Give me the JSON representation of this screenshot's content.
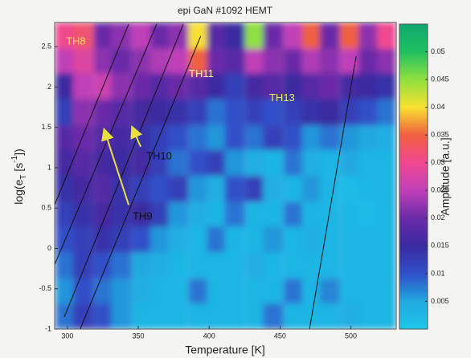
{
  "chart_data": {
    "type": "heatmap",
    "title": "epi GaN #1092 HEMT",
    "xlabel": "Temperature  [K]",
    "ylabel": [
      "log(e",
      "T",
      " [s",
      "-1",
      "])"
    ],
    "colorbar_label": "Amplitude [a.u.]",
    "xlim": [
      291,
      532
    ],
    "ylim": [
      -1,
      2.8
    ],
    "xticks": [
      300,
      350,
      400,
      450,
      500
    ],
    "yticks": [
      -1,
      -0.5,
      0,
      0.5,
      1,
      1.5,
      2,
      2.5
    ],
    "clim": [
      0,
      0.055
    ],
    "cticks": [
      0.005,
      0.01,
      0.015,
      0.02,
      0.025,
      0.03,
      0.035,
      0.04,
      0.045,
      0.05
    ],
    "colormap": [
      "#1ec8ea",
      "#20a8e0",
      "#3050c8",
      "#3a2aa0",
      "#6a2aa8",
      "#c040b8",
      "#f04890",
      "#f06040",
      "#f8e030",
      "#90e040",
      "#20c060",
      "#10a870"
    ],
    "x": [
      298,
      311,
      325,
      338,
      352,
      365,
      378,
      392,
      405,
      418,
      432,
      445,
      459,
      472,
      485,
      499,
      512,
      525
    ],
    "y": [
      2.64,
      2.32,
      2.01,
      1.69,
      1.37,
      1.06,
      0.74,
      0.42,
      0.11,
      -0.21,
      -0.53,
      -0.84
    ],
    "z": [
      [
        0.03,
        0.032,
        0.02,
        0.022,
        0.025,
        0.02,
        0.022,
        0.04,
        0.018,
        0.015,
        0.045,
        0.02,
        0.025,
        0.035,
        0.02,
        0.035,
        0.022,
        0.03
      ],
      [
        0.025,
        0.028,
        0.022,
        0.02,
        0.022,
        0.024,
        0.025,
        0.035,
        0.02,
        0.018,
        0.025,
        0.022,
        0.02,
        0.024,
        0.022,
        0.025,
        0.02,
        0.022
      ],
      [
        0.015,
        0.025,
        0.026,
        0.022,
        0.02,
        0.018,
        0.02,
        0.018,
        0.015,
        0.012,
        0.016,
        0.018,
        0.015,
        0.018,
        0.02,
        0.016,
        0.015,
        0.014
      ],
      [
        0.012,
        0.022,
        0.02,
        0.018,
        0.016,
        0.015,
        0.014,
        0.012,
        0.008,
        0.01,
        0.012,
        0.01,
        0.012,
        0.014,
        0.015,
        0.012,
        0.01,
        0.008
      ],
      [
        0.018,
        0.02,
        0.018,
        0.016,
        0.014,
        0.012,
        0.01,
        0.008,
        0.006,
        0.01,
        0.008,
        0.012,
        0.01,
        0.006,
        0.008,
        0.006,
        0.005,
        0.004
      ],
      [
        0.016,
        0.018,
        0.016,
        0.015,
        0.016,
        0.012,
        0.008,
        0.01,
        0.012,
        0.006,
        0.004,
        0.003,
        0.008,
        0.004,
        0.003,
        0.005,
        0.003,
        0.003
      ],
      [
        0.014,
        0.016,
        0.018,
        0.014,
        0.012,
        0.01,
        0.012,
        0.006,
        0.004,
        0.01,
        0.012,
        0.004,
        0.003,
        0.006,
        0.003,
        0.002,
        0.003,
        0.003
      ],
      [
        0.012,
        0.014,
        0.016,
        0.014,
        0.015,
        0.012,
        0.006,
        0.004,
        0.003,
        0.008,
        0.003,
        0.003,
        0.008,
        0.003,
        0.003,
        0.003,
        0.002,
        0.003
      ],
      [
        0.01,
        0.012,
        0.014,
        0.012,
        0.01,
        0.006,
        0.004,
        0.003,
        0.008,
        0.003,
        0.003,
        0.006,
        0.003,
        0.004,
        0.003,
        0.003,
        0.003,
        0.003
      ],
      [
        0.008,
        0.012,
        0.01,
        0.008,
        0.005,
        0.004,
        0.003,
        0.003,
        0.003,
        0.003,
        0.004,
        0.003,
        0.003,
        0.003,
        0.003,
        0.003,
        0.003,
        0.003
      ],
      [
        0.006,
        0.01,
        0.008,
        0.006,
        0.004,
        0.003,
        0.003,
        0.008,
        0.003,
        0.003,
        0.003,
        0.003,
        0.008,
        0.003,
        0.007,
        0.003,
        0.003,
        0.003
      ],
      [
        0.008,
        0.012,
        0.01,
        0.006,
        0.003,
        0.003,
        0.003,
        0.003,
        0.003,
        0.003,
        0.003,
        0.008,
        0.003,
        0.003,
        0.003,
        0.004,
        0.003,
        0.003
      ]
    ],
    "lines": [
      {
        "x": [
          291,
          343.2
        ],
        "y": [
          0.54,
          2.78
        ]
      },
      {
        "x": [
          291,
          363
        ],
        "y": [
          -0.2,
          2.78
        ]
      },
      {
        "x": [
          297.8,
          381.8
        ],
        "y": [
          -0.85,
          2.78
        ]
      },
      {
        "x": [
          309,
          394
        ],
        "y": [
          -1,
          2.63
        ]
      },
      {
        "x": [
          470.8,
          503.7
        ],
        "y": [
          -1,
          2.38
        ]
      }
    ],
    "line_color": "#111111",
    "annotations": [
      {
        "text": "TH8",
        "x": 299,
        "y": 2.56,
        "color": "#f8e060"
      },
      {
        "text": "TH11",
        "x": 385.7,
        "y": 2.16,
        "color": "#fff0a0"
      },
      {
        "text": "TH13",
        "x": 442.4,
        "y": 1.86,
        "color": "#e8f060"
      },
      {
        "text": "TH10",
        "x": 355.7,
        "y": 1.14,
        "color": "#111111",
        "arrow": {
          "x": [
            351.7,
            346
          ],
          "y": [
            1.26,
            1.49
          ]
        }
      },
      {
        "text": "TH9",
        "x": 346,
        "y": 0.39,
        "color": "#111111",
        "arrow": {
          "x": [
            343.2,
            326.2
          ],
          "y": [
            0.54,
            1.46
          ]
        }
      }
    ],
    "arrow_color": "#e8e040"
  }
}
